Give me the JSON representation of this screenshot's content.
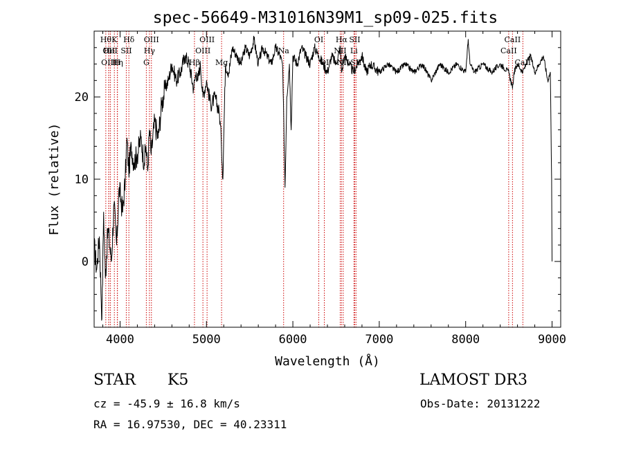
{
  "chart_data": {
    "type": "line",
    "title": "spec-56649-M31016N39M1_sp09-025.fits",
    "xlabel": "Wavelength (Å)",
    "ylabel": "Flux (relative)",
    "xlim": [
      3700,
      9100
    ],
    "ylim": [
      -8,
      28
    ],
    "xticks": [
      4000,
      5000,
      6000,
      7000,
      8000,
      9000
    ],
    "yticks": [
      0,
      10,
      20
    ],
    "grid": false,
    "series": [
      {
        "x": [
          3700,
          3730,
          3760,
          3790,
          3810,
          3830,
          3860,
          3900,
          3930,
          3960,
          3990,
          4030,
          4060,
          4080,
          4100,
          4130,
          4160,
          4200,
          4240,
          4280,
          4300,
          4320,
          4340,
          4360,
          4400,
          4440,
          4480,
          4520,
          4560,
          4600,
          4650,
          4700,
          4750,
          4800,
          4850,
          4880,
          4900,
          4930,
          4960,
          5000,
          5050,
          5100,
          5150,
          5170,
          5190,
          5200,
          5220,
          5260,
          5300,
          5350,
          5400,
          5450,
          5500,
          5550,
          5600,
          5650,
          5700,
          5750,
          5800,
          5850,
          5880,
          5895,
          5910,
          5930,
          5960,
          5980,
          6000,
          6050,
          6100,
          6150,
          6200,
          6250,
          6300,
          6350,
          6400,
          6450,
          6500,
          6550,
          6563,
          6580,
          6600,
          6650,
          6700,
          6750,
          6800,
          6850,
          6900,
          7000,
          7100,
          7200,
          7300,
          7400,
          7500,
          7600,
          7700,
          7800,
          7900,
          8000,
          8030,
          8050,
          8100,
          8200,
          8300,
          8400,
          8500,
          8542,
          8560,
          8600,
          8662,
          8700,
          8750,
          8800,
          8850,
          8900,
          8950,
          8980,
          8995,
          9000
        ],
        "values": [
          2,
          -1,
          3,
          -7,
          6,
          -2,
          4,
          0,
          7,
          2,
          9,
          6,
          10,
          15,
          11,
          14,
          12,
          13,
          15,
          12,
          14,
          11,
          16,
          13,
          17,
          15,
          19,
          21,
          22,
          24,
          22,
          23,
          25,
          24,
          21,
          23,
          22,
          24,
          20,
          22,
          19,
          20,
          18,
          15,
          10,
          15,
          24,
          23,
          26,
          25,
          24,
          26,
          25,
          27,
          24,
          26,
          25,
          24,
          26,
          25,
          24,
          17,
          9,
          20,
          24,
          16,
          25,
          24,
          26,
          25,
          24,
          26,
          25,
          24,
          23,
          25,
          24,
          26,
          23,
          24,
          25,
          24,
          23,
          24,
          25,
          23,
          24,
          23,
          24,
          23,
          24,
          23,
          24,
          22,
          24,
          23,
          24,
          23,
          27,
          24,
          23,
          24,
          23,
          24,
          23,
          21,
          23,
          24,
          23,
          24,
          25,
          23,
          24,
          25,
          22,
          23,
          10,
          0
        ]
      }
    ],
    "line_markers": [
      {
        "wave": 3835,
        "row": 1,
        "label": "Hθ"
      },
      {
        "wave": 3869,
        "row": 2,
        "label": "OII"
      },
      {
        "wave": 3870,
        "row": 3,
        "label": "OIII"
      },
      {
        "wave": 3889,
        "row": 2,
        "label": "HeI"
      },
      {
        "wave": 3934,
        "row": 1,
        "label": "K"
      },
      {
        "wave": 3970,
        "row": 3,
        "label": "Hη"
      },
      {
        "wave": 3968,
        "row": 3,
        "label": "H"
      },
      {
        "wave": 4072,
        "row": 2,
        "label": "SII"
      },
      {
        "wave": 4102,
        "row": 1,
        "label": "Hδ"
      },
      {
        "wave": 4304,
        "row": 3,
        "label": "G"
      },
      {
        "wave": 4340,
        "row": 2,
        "label": "Hγ"
      },
      {
        "wave": 4363,
        "row": 1,
        "label": "OIII"
      },
      {
        "wave": 4861,
        "row": 3,
        "label": "Hβ"
      },
      {
        "wave": 4959,
        "row": 2,
        "label": "OIII"
      },
      {
        "wave": 5007,
        "row": 1,
        "label": "OIII"
      },
      {
        "wave": 5175,
        "row": 3,
        "label": "Mg"
      },
      {
        "wave": 5893,
        "row": 2,
        "label": "Na"
      },
      {
        "wave": 6300,
        "row": 1,
        "label": "OI"
      },
      {
        "wave": 6364,
        "row": 3,
        "label": "OI"
      },
      {
        "wave": 6548,
        "row": 2,
        "label": "NII"
      },
      {
        "wave": 6563,
        "row": 1,
        "label": "Hα"
      },
      {
        "wave": 6583,
        "row": 3,
        "label": "NII"
      },
      {
        "wave": 6707,
        "row": 2,
        "label": "Li"
      },
      {
        "wave": 6716,
        "row": 1,
        "label": "SII"
      },
      {
        "wave": 6731,
        "row": 3,
        "label": "SII"
      },
      {
        "wave": 8498,
        "row": 2,
        "label": "CaII"
      },
      {
        "wave": 8542,
        "row": 1,
        "label": "CaII"
      },
      {
        "wave": 8662,
        "row": 3,
        "label": "CaII"
      }
    ],
    "colors": {
      "spectrum": "#000000",
      "line_marker": "#cc0000",
      "axes": "#000000"
    }
  },
  "info": {
    "class": "STAR",
    "subclass": "K5",
    "survey": "LAMOST DR3",
    "redshift": "cz = -45.9 ± 16.8 km/s",
    "obs_date": "Obs-Date: 20131222",
    "coords": "RA =  16.97530, DEC =  40.23311"
  }
}
